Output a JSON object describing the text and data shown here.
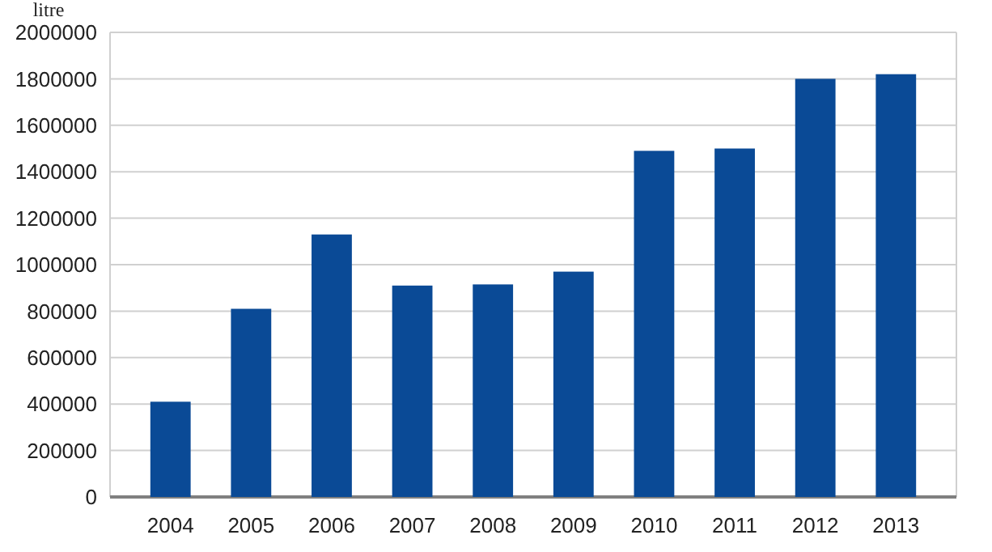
{
  "chart_data": {
    "type": "bar",
    "ylabel": "litre",
    "categories": [
      "2004",
      "2005",
      "2006",
      "2007",
      "2008",
      "2009",
      "2010",
      "2011",
      "2012",
      "2013"
    ],
    "values": [
      410000,
      810000,
      1130000,
      910000,
      915000,
      970000,
      1490000,
      1500000,
      1800000,
      1820000
    ],
    "color": "#0a4a96",
    "ylim": [
      0,
      2000000
    ],
    "yticks": [
      0,
      200000,
      400000,
      600000,
      800000,
      1000000,
      1200000,
      1400000,
      1600000,
      1800000,
      2000000
    ],
    "grid": "y"
  }
}
